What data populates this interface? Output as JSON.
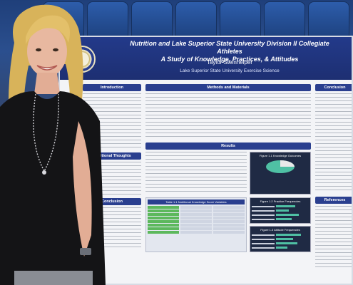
{
  "scene": {
    "description_colors": {
      "poster_header": "#233a8a",
      "poster_bg": "#f3f4f7",
      "seats": "#2d5dab"
    }
  },
  "poster": {
    "title_line1": "Nutrition and Lake Superior State University Division II Collegiate Athletes",
    "title_line2": "A Study of Knowledge, Practices, & Attitudes",
    "author": "Taylor Steinhelper",
    "affiliation": "Lake Superior State University Exercise Science",
    "sections": {
      "introduction": "Introduction",
      "methods": "Methods and Materials",
      "results": "Results",
      "conclusion": "Conclusion",
      "additional": "Additional Thoughts",
      "references": "References"
    },
    "figures": {
      "fig1": "Figure 1.1 Knowledge Outcomes",
      "fig2": "Figure 1.2 Practice Frequencies",
      "fig3": "Figure 1.3 Attitude Frequencies",
      "table": "Table 1.1 Nutritional Knowledge Score Variables"
    }
  }
}
